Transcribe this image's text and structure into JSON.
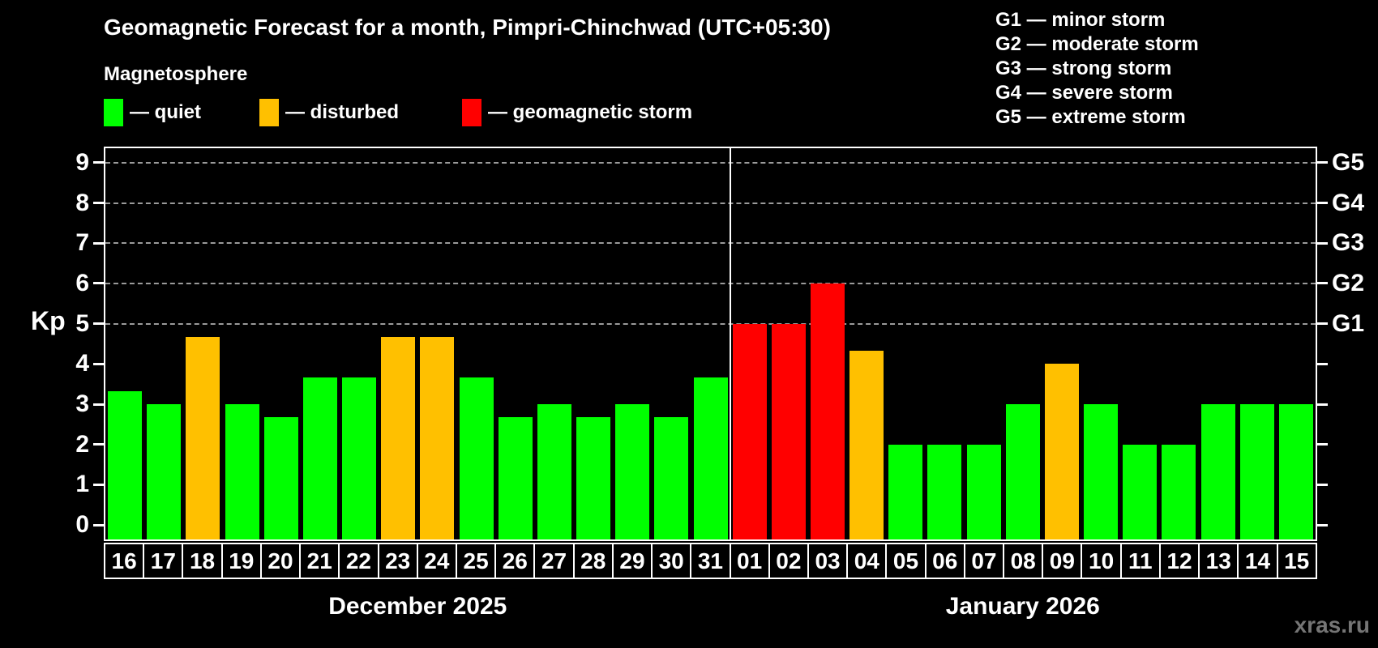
{
  "title": "Geomagnetic Forecast for a month, Pimpri-Chinchwad (UTC+05:30)",
  "subtitle": "Magnetosphere",
  "legend": {
    "items": [
      {
        "key": "quiet",
        "color": "#00ff00",
        "label": "— quiet"
      },
      {
        "key": "disturbed",
        "color": "#ffc000",
        "label": "— disturbed"
      },
      {
        "key": "storm",
        "color": "#ff0000",
        "label": "— geomagnetic storm"
      }
    ]
  },
  "g_legend": [
    "G1 — minor storm",
    "G2 — moderate storm",
    "G3 — strong storm",
    "G4 — severe storm",
    "G5 — extreme storm"
  ],
  "axes": {
    "y_label": "Kp",
    "y_ticks": [
      0,
      1,
      2,
      3,
      4,
      5,
      6,
      7,
      8,
      9
    ],
    "right_labels": [
      "G1",
      "G2",
      "G3",
      "G4",
      "G5"
    ],
    "g_levels": [
      5,
      6,
      7,
      8,
      9
    ]
  },
  "watermark": "xras.ru",
  "chart_data": {
    "type": "bar",
    "title": "Geomagnetic Forecast for a month, Pimpri-Chinchwad (UTC+05:30)",
    "xlabel": "",
    "ylabel": "Kp",
    "ylim": [
      0,
      9
    ],
    "plot_range": [
      -0.36,
      9.36
    ],
    "grid": "dashed horizontal at G-levels 5..9",
    "legend_position": "top",
    "months": [
      {
        "label": "December 2025",
        "days": 16
      },
      {
        "label": "January 2026",
        "days": 15
      }
    ],
    "bars": [
      {
        "day": "16",
        "month": "December 2025",
        "kp": 3.33,
        "status": "quiet"
      },
      {
        "day": "17",
        "month": "December 2025",
        "kp": 3.0,
        "status": "quiet"
      },
      {
        "day": "18",
        "month": "December 2025",
        "kp": 4.67,
        "status": "disturbed"
      },
      {
        "day": "19",
        "month": "December 2025",
        "kp": 3.0,
        "status": "quiet"
      },
      {
        "day": "20",
        "month": "December 2025",
        "kp": 2.67,
        "status": "quiet"
      },
      {
        "day": "21",
        "month": "December 2025",
        "kp": 3.67,
        "status": "quiet"
      },
      {
        "day": "22",
        "month": "December 2025",
        "kp": 3.67,
        "status": "quiet"
      },
      {
        "day": "23",
        "month": "December 2025",
        "kp": 4.67,
        "status": "disturbed"
      },
      {
        "day": "24",
        "month": "December 2025",
        "kp": 4.67,
        "status": "disturbed"
      },
      {
        "day": "25",
        "month": "December 2025",
        "kp": 3.67,
        "status": "quiet"
      },
      {
        "day": "26",
        "month": "December 2025",
        "kp": 2.67,
        "status": "quiet"
      },
      {
        "day": "27",
        "month": "December 2025",
        "kp": 3.0,
        "status": "quiet"
      },
      {
        "day": "28",
        "month": "December 2025",
        "kp": 2.67,
        "status": "quiet"
      },
      {
        "day": "29",
        "month": "December 2025",
        "kp": 3.0,
        "status": "quiet"
      },
      {
        "day": "30",
        "month": "December 2025",
        "kp": 2.67,
        "status": "quiet"
      },
      {
        "day": "31",
        "month": "December 2025",
        "kp": 3.67,
        "status": "quiet"
      },
      {
        "day": "01",
        "month": "January 2026",
        "kp": 5.0,
        "status": "storm"
      },
      {
        "day": "02",
        "month": "January 2026",
        "kp": 5.0,
        "status": "storm"
      },
      {
        "day": "03",
        "month": "January 2026",
        "kp": 6.0,
        "status": "storm"
      },
      {
        "day": "04",
        "month": "January 2026",
        "kp": 4.33,
        "status": "disturbed"
      },
      {
        "day": "05",
        "month": "January 2026",
        "kp": 2.0,
        "status": "quiet"
      },
      {
        "day": "06",
        "month": "January 2026",
        "kp": 2.0,
        "status": "quiet"
      },
      {
        "day": "07",
        "month": "January 2026",
        "kp": 2.0,
        "status": "quiet"
      },
      {
        "day": "08",
        "month": "January 2026",
        "kp": 3.0,
        "status": "quiet"
      },
      {
        "day": "09",
        "month": "January 2026",
        "kp": 4.0,
        "status": "disturbed"
      },
      {
        "day": "10",
        "month": "January 2026",
        "kp": 3.0,
        "status": "quiet"
      },
      {
        "day": "11",
        "month": "January 2026",
        "kp": 2.0,
        "status": "quiet"
      },
      {
        "day": "12",
        "month": "January 2026",
        "kp": 2.0,
        "status": "quiet"
      },
      {
        "day": "13",
        "month": "January 2026",
        "kp": 3.0,
        "status": "quiet"
      },
      {
        "day": "14",
        "month": "January 2026",
        "kp": 3.0,
        "status": "quiet"
      },
      {
        "day": "15",
        "month": "January 2026",
        "kp": 3.0,
        "status": "quiet"
      }
    ]
  }
}
